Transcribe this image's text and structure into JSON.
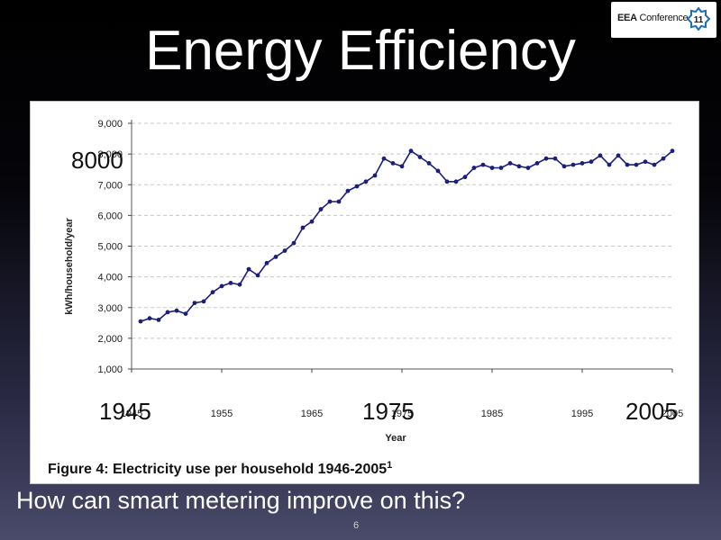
{
  "slide": {
    "title": "Energy Efficiency",
    "question": "How can smart metering improve on this?",
    "page_number": "6"
  },
  "logo": {
    "text_bold": "EEA",
    "text_regular": " Conference",
    "badge": "11",
    "accent": "#1f6fb5"
  },
  "overlays": {
    "y_note": "8000",
    "x_note_1": "1945",
    "x_note_2": "1975",
    "x_note_3": "2005"
  },
  "chart_data": {
    "type": "line",
    "caption": "Figure 4: Electricity use per household 1946-2005",
    "caption_superscript": "1",
    "xlabel": "Year",
    "ylabel": "kWh/household/year",
    "x_ticks": [
      1945,
      1955,
      1965,
      1975,
      1985,
      1995,
      2005
    ],
    "y_ticks": [
      1000,
      2000,
      3000,
      4000,
      5000,
      6000,
      7000,
      8000,
      9000
    ],
    "y_tick_labels": [
      "1,000",
      "2,000",
      "3,000",
      "4,000",
      "5,000",
      "6,000",
      "7,000",
      "8,000",
      "9,000"
    ],
    "xlim": [
      1945,
      2005
    ],
    "ylim": [
      1000,
      9000
    ],
    "gridlines": "horizontal dashed",
    "line_color": "#1a1f7a",
    "series": [
      {
        "name": "Electricity use per household",
        "x": [
          1946,
          1947,
          1948,
          1949,
          1950,
          1951,
          1952,
          1953,
          1954,
          1955,
          1956,
          1957,
          1958,
          1959,
          1960,
          1961,
          1962,
          1963,
          1964,
          1965,
          1966,
          1967,
          1968,
          1969,
          1970,
          1971,
          1972,
          1973,
          1974,
          1975,
          1976,
          1977,
          1978,
          1979,
          1980,
          1981,
          1982,
          1983,
          1984,
          1985,
          1986,
          1987,
          1988,
          1989,
          1990,
          1991,
          1992,
          1993,
          1994,
          1995,
          1996,
          1997,
          1998,
          1999,
          2000,
          2001,
          2002,
          2003,
          2004,
          2005
        ],
        "values": [
          2550,
          2650,
          2600,
          2850,
          2900,
          2800,
          3150,
          3200,
          3500,
          3700,
          3800,
          3750,
          4250,
          4050,
          4450,
          4650,
          4850,
          5100,
          5600,
          5800,
          6200,
          6450,
          6450,
          6800,
          6950,
          7100,
          7300,
          7850,
          7700,
          7600,
          8100,
          7900,
          7700,
          7450,
          7100,
          7100,
          7250,
          7550,
          7650,
          7550,
          7550,
          7700,
          7600,
          7550,
          7700,
          7850,
          7850,
          7600,
          7650,
          7700,
          7750,
          7950,
          7650,
          7950,
          7650,
          7650,
          7750,
          7650,
          7850,
          8100
        ]
      }
    ]
  }
}
